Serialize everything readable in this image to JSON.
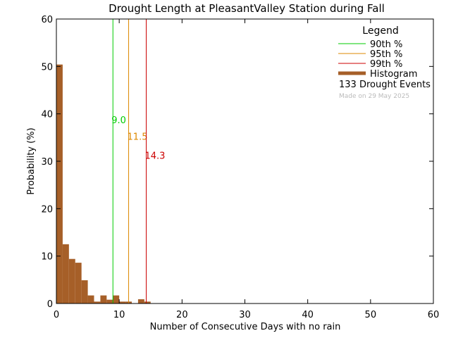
{
  "chart_data": {
    "type": "bar",
    "title": "Drought Length at PleasantValley Station during Fall",
    "xlabel": "Number of Consecutive Days with no rain",
    "ylabel": "Probability (%)",
    "xlim": [
      0,
      60
    ],
    "ylim": [
      0,
      60
    ],
    "xticks": [
      "0",
      "10",
      "20",
      "30",
      "40",
      "50",
      "60"
    ],
    "yticks": [
      "0",
      "10",
      "20",
      "30",
      "40",
      "50",
      "60"
    ],
    "grid": false,
    "legend_position": "top-right",
    "histogram": {
      "bin_width": 1,
      "bins": [
        {
          "x": 0,
          "value": 50.4
        },
        {
          "x": 1,
          "value": 12.5
        },
        {
          "x": 2,
          "value": 9.4
        },
        {
          "x": 3,
          "value": 8.6
        },
        {
          "x": 4,
          "value": 4.9
        },
        {
          "x": 5,
          "value": 1.7
        },
        {
          "x": 6,
          "value": 0.4
        },
        {
          "x": 7,
          "value": 1.7
        },
        {
          "x": 8,
          "value": 0.8
        },
        {
          "x": 9,
          "value": 1.7
        },
        {
          "x": 10,
          "value": 0.4
        },
        {
          "x": 11,
          "value": 0.4
        },
        {
          "x": 12,
          "value": 0.0
        },
        {
          "x": 13,
          "value": 0.9
        },
        {
          "x": 14,
          "value": 0.4
        }
      ]
    },
    "percentiles": [
      {
        "name": "90th %",
        "value": 9.0,
        "label": "9.0",
        "label_y": 38,
        "color": "#00cc00"
      },
      {
        "name": "95th %",
        "value": 11.5,
        "label": "11.5",
        "label_y": 34.5,
        "color": "#dd8800"
      },
      {
        "name": "99th %",
        "value": 14.3,
        "label": "14.3",
        "label_y": 30.5,
        "color": "#cc0000"
      }
    ],
    "legend": {
      "title": "Legend",
      "histogram_label": "Histogram",
      "events_text": "133 Drought Events",
      "made_on": "Made on 29 May 2025"
    },
    "colors": {
      "histogram": "#a65f28",
      "axes": "#000000",
      "made_on": "#bbbbbb"
    }
  }
}
